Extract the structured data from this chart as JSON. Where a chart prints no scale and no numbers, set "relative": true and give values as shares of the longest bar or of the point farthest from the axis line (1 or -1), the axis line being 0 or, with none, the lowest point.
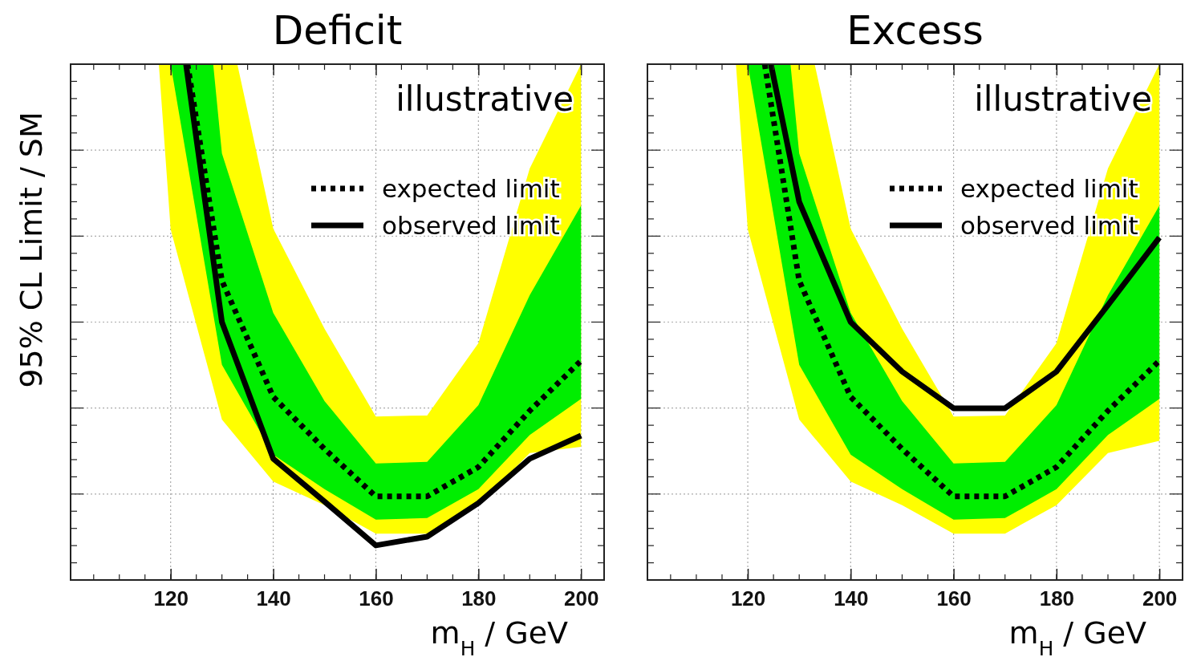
{
  "chart_data": [
    {
      "type": "line",
      "title": "Deficit",
      "xlabel": "m$_{H}$ / GeV",
      "ylabel": "95% CL Limit / SM",
      "relative": true,
      "xlim": [
        100.5,
        204.5
      ],
      "xticks": [
        120,
        140,
        160,
        180,
        200
      ],
      "tick_labels": "x",
      "grid": true,
      "legend": "top right",
      "annotations": [
        "illustrative"
      ],
      "series": [
        {
          "color": "#ffff00",
          "line_style": "dotted",
          "x": [
            117.7,
            120,
            123.3,
            128.3,
            130,
            133,
            140,
            150,
            160,
            170,
            180,
            190,
            200
          ],
          "values": [
            null,
            null,
            null,
            null,
            null,
            null,
            null,
            null,
            null,
            null,
            null,
            null,
            null
          ],
          "lower": [
            1,
            0.68,
            0.558,
            0.374,
            0.311,
            0.275,
            0.191,
            0.145,
            0.09,
            0.09,
            0.145,
            0.246,
            0.258
          ],
          "upper": [
            1,
            1,
            1,
            1,
            1,
            1,
            0.681,
            0.487,
            0.317,
            0.319,
            0.459,
            0.798,
            1
          ]
        },
        {
          "color": "#00ee00",
          "line_style": "dotted",
          "x": [
            120,
            123.3,
            128.3,
            130,
            133,
            140,
            150,
            160,
            170,
            180,
            190,
            200
          ],
          "values": [
            null,
            null,
            null,
            null,
            null,
            null,
            null,
            null,
            null,
            null,
            null,
            null
          ],
          "lower": [
            1,
            0.808,
            0.516,
            0.417,
            0.365,
            0.243,
            0.176,
            0.117,
            0.12,
            0.176,
            0.281,
            0.351
          ],
          "upper": [
            1,
            1,
            1,
            0.827,
            0.734,
            0.518,
            0.347,
            0.226,
            0.229,
            0.339,
            0.552,
            0.726
          ]
        },
        {
          "name": "expected limit",
          "color": "#000000",
          "line_style": "dotted",
          "x": [
            123.3,
            130,
            140,
            150,
            160,
            170,
            180,
            190,
            200
          ],
          "values": [
            1,
            0.58,
            0.355,
            0.254,
            0.162,
            0.162,
            0.219,
            0.328,
            0.425
          ]
        },
        {
          "name": "observed limit",
          "color": "#000000",
          "line_style": "solid",
          "x": [
            123,
            130,
            140,
            150,
            160,
            170,
            180,
            190,
            200
          ],
          "values": [
            1,
            0.5,
            0.235,
            0.152,
            0.067,
            0.084,
            0.149,
            0.235,
            0.28
          ]
        }
      ]
    },
    {
      "type": "line",
      "title": "Excess",
      "xlabel": "m$_{H}$ / GeV",
      "relative": true,
      "xlim": [
        100.5,
        204.5
      ],
      "xticks": [
        120,
        140,
        160,
        180,
        200
      ],
      "tick_labels": "x",
      "grid": true,
      "legend": "top right",
      "annotations": [
        "illustrative"
      ],
      "series": [
        {
          "color": "#ffff00",
          "line_style": "dotted",
          "x": [
            117.7,
            120,
            123.3,
            128.3,
            130,
            133,
            140,
            150,
            160,
            170,
            180,
            190,
            200
          ],
          "values": [
            null,
            null,
            null,
            null,
            null,
            null,
            null,
            null,
            null,
            null,
            null,
            null,
            null
          ],
          "lower": [
            1,
            0.68,
            0.558,
            0.374,
            0.311,
            0.275,
            0.191,
            0.145,
            0.09,
            0.09,
            0.145,
            0.246,
            0.27
          ],
          "upper": [
            1,
            1,
            1,
            1,
            1,
            1,
            0.681,
            0.487,
            0.317,
            0.319,
            0.459,
            0.798,
            1
          ]
        },
        {
          "color": "#00ee00",
          "line_style": "dotted",
          "x": [
            120,
            123.3,
            128.3,
            130,
            133,
            140,
            150,
            160,
            170,
            180,
            190,
            200
          ],
          "values": [
            null,
            null,
            null,
            null,
            null,
            null,
            null,
            null,
            null,
            null,
            null,
            null
          ],
          "lower": [
            1,
            0.808,
            0.516,
            0.417,
            0.365,
            0.243,
            0.176,
            0.117,
            0.12,
            0.176,
            0.281,
            0.351
          ],
          "upper": [
            1,
            1,
            1,
            0.827,
            0.734,
            0.518,
            0.347,
            0.226,
            0.229,
            0.339,
            0.552,
            0.726
          ]
        },
        {
          "name": "expected limit",
          "color": "#000000",
          "line_style": "dotted",
          "x": [
            123.3,
            130,
            140,
            150,
            160,
            170,
            180,
            190,
            200
          ],
          "values": [
            1,
            0.58,
            0.355,
            0.254,
            0.162,
            0.162,
            0.219,
            0.328,
            0.425
          ]
        },
        {
          "name": "observed limit",
          "color": "#000000",
          "line_style": "solid",
          "x": [
            124.5,
            130,
            140,
            150,
            160,
            170,
            180,
            190,
            200
          ],
          "values": [
            1,
            0.733,
            0.5,
            0.404,
            0.333,
            0.333,
            0.404,
            0.533,
            0.664
          ]
        }
      ]
    }
  ]
}
